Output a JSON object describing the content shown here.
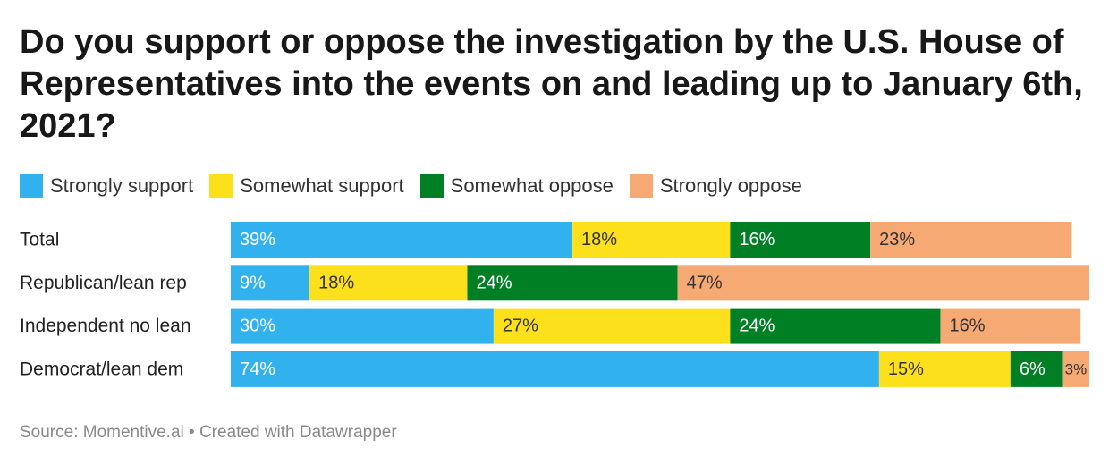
{
  "header": {
    "title": "Do you support or oppose the investigation by the U.S. House of Representatives into the events on and leading up to January 6th, 2021?"
  },
  "footer": {
    "source": "Source: Momentive.ai • Created with Datawrapper"
  },
  "chart_data": {
    "type": "bar",
    "orientation": "horizontal-stacked",
    "title": "Do you support or oppose the investigation by the U.S. House of Representatives into the events on and leading up to January 6th, 2021?",
    "legend_position": "top-left",
    "categories": [
      "Total",
      "Republican/lean rep",
      "Independent no lean",
      "Democrat/lean dem"
    ],
    "series": [
      {
        "name": "Strongly support",
        "color": "#31b2ee",
        "values": [
          39,
          9,
          30,
          74
        ],
        "labels": [
          "39%",
          "9%",
          "30%",
          "74%"
        ]
      },
      {
        "name": "Somewhat support",
        "color": "#fce01c",
        "values": [
          18,
          18,
          27,
          15
        ],
        "labels": [
          "18%",
          "18%",
          "27%",
          "15%"
        ]
      },
      {
        "name": "Somewhat oppose",
        "color": "#007f24",
        "values": [
          16,
          24,
          24,
          6
        ],
        "labels": [
          "16%",
          "24%",
          "24%",
          "6%"
        ]
      },
      {
        "name": "Strongly oppose",
        "color": "#f6a972",
        "values": [
          23,
          47,
          16,
          3
        ],
        "labels": [
          "23%",
          "47%",
          "16%",
          "3%"
        ]
      }
    ],
    "xlim": [
      0,
      98
    ],
    "xlabel": "",
    "ylabel": ""
  }
}
